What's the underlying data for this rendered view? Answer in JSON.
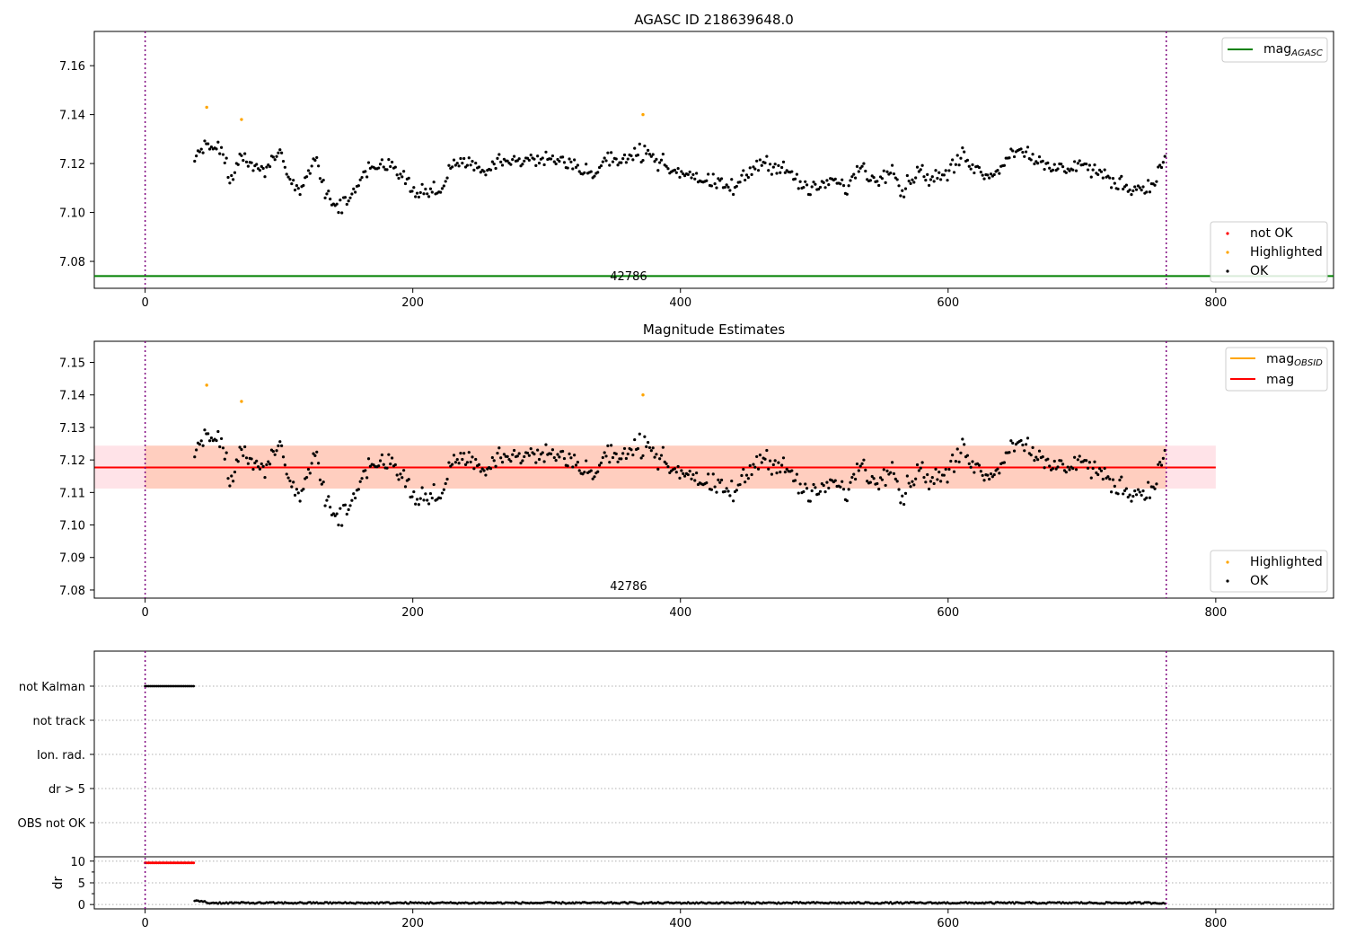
{
  "chart_data": [
    {
      "type": "scatter",
      "title": "AGASC ID 218639648.0",
      "xlabel": "",
      "ylabel": "",
      "xlim": [
        -38,
        888
      ],
      "ylim": [
        7.069,
        7.174
      ],
      "xticks": [
        0,
        200,
        400,
        600,
        800
      ],
      "yticks": [
        7.08,
        7.1,
        7.12,
        7.14,
        7.16
      ],
      "ytick_labels": [
        "7.08",
        "7.10",
        "7.12",
        "7.14",
        "7.16"
      ],
      "xtick_labels": [
        "0",
        "200",
        "400",
        "600",
        "800"
      ],
      "vlines": [
        0,
        763
      ],
      "hline": {
        "name": "mag_AGASC",
        "y": 7.074,
        "color": "#008000"
      },
      "obsid_label": {
        "text": "42786",
        "x": 380
      },
      "legend_upper": [
        {
          "label": "mag",
          "sub": "AGASC",
          "color": "#008000"
        }
      ],
      "legend_lower": [
        {
          "label": "not OK",
          "color": "#ff0000"
        },
        {
          "label": "Highlighted",
          "color": "#ffa500"
        },
        {
          "label": "OK",
          "color": "#000000"
        }
      ],
      "highlighted_points": [
        {
          "x": 46,
          "y": 7.143
        },
        {
          "x": 72,
          "y": 7.138
        },
        {
          "x": 372,
          "y": 7.14
        }
      ],
      "series_profile": {
        "x_start": 37,
        "x_end": 763,
        "x_step": 1.25,
        "anchors_x": [
          37,
          45,
          55,
          65,
          70,
          78,
          90,
          100,
          108,
          115,
          120,
          128,
          135,
          140,
          145,
          150,
          158,
          165,
          175,
          185,
          200,
          210,
          222,
          230,
          240,
          252,
          265,
          280,
          300,
          320,
          335,
          345,
          358,
          368,
          375,
          385,
          395,
          408,
          420,
          440,
          460,
          478,
          490,
          500,
          512,
          525,
          535,
          545,
          558,
          565,
          578,
          585,
          598,
          612,
          622,
          635,
          650,
          660,
          672,
          686,
          700,
          712,
          722,
          738,
          750,
          758,
          763
        ],
        "anchors_y": [
          7.122,
          7.128,
          7.127,
          7.112,
          7.122,
          7.12,
          7.117,
          7.126,
          7.112,
          7.107,
          7.115,
          7.124,
          7.108,
          7.104,
          7.102,
          7.104,
          7.11,
          7.118,
          7.119,
          7.12,
          7.109,
          7.108,
          7.11,
          7.12,
          7.121,
          7.117,
          7.122,
          7.121,
          7.122,
          7.12,
          7.115,
          7.122,
          7.121,
          7.124,
          7.126,
          7.12,
          7.117,
          7.116,
          7.112,
          7.11,
          7.121,
          7.118,
          7.111,
          7.109,
          7.113,
          7.11,
          7.12,
          7.112,
          7.12,
          7.108,
          7.118,
          7.114,
          7.115,
          7.124,
          7.117,
          7.116,
          7.126,
          7.125,
          7.118,
          7.118,
          7.12,
          7.116,
          7.113,
          7.11,
          7.11,
          7.117,
          7.124
        ]
      },
      "points_note": "OK points: ~580 individual magnitude estimates (mag 7.099–7.136) generated from series_profile"
    },
    {
      "type": "scatter",
      "title": "Magnitude Estimates",
      "xlim": [
        -38,
        888
      ],
      "ylim": [
        7.0775,
        7.1565
      ],
      "xticks": [
        0,
        200,
        400,
        600,
        800
      ],
      "yticks": [
        7.08,
        7.09,
        7.1,
        7.11,
        7.12,
        7.13,
        7.14,
        7.15
      ],
      "ytick_labels": [
        "7.08",
        "7.09",
        "7.10",
        "7.11",
        "7.12",
        "7.13",
        "7.14",
        "7.15"
      ],
      "xtick_labels": [
        "0",
        "200",
        "400",
        "600",
        "800"
      ],
      "vlines": [
        0,
        763
      ],
      "mag": {
        "value": 7.1177,
        "low": 7.1112,
        "high": 7.1244,
        "x_range": [
          -38,
          800
        ]
      },
      "mag_obsid": {
        "value": 7.1177,
        "low": 7.1112,
        "high": 7.1244,
        "x_range": [
          0,
          763
        ]
      },
      "obsid_label": {
        "text": "42786",
        "x": 380
      },
      "legend_upper": [
        {
          "label": "mag",
          "sub": "OBSID",
          "color": "#ffa500"
        },
        {
          "label": "mag",
          "sub": "",
          "color": "#ff0000"
        }
      ],
      "legend_lower": [
        {
          "label": "Highlighted",
          "color": "#ffa500"
        },
        {
          "label": "OK",
          "color": "#000000"
        }
      ]
    },
    {
      "type": "scatter",
      "title": "",
      "xlim": [
        -38,
        888
      ],
      "flags": [
        "not Kalman",
        "not track",
        "Ion. rad.",
        "dr > 5",
        "OBS not OK"
      ],
      "flag_ranges": [
        {
          "flag": "not Kalman",
          "x_range": [
            0,
            37
          ]
        }
      ],
      "dr_ylim": [
        -1,
        11
      ],
      "dr_yticks": [
        0,
        5,
        10
      ],
      "dr_ytick_labels": [
        "0",
        "5",
        "10"
      ],
      "dr_ylabel": "dr",
      "dr_high": {
        "x_range": [
          0,
          37
        ],
        "value": 9.6,
        "color": "#ff0000"
      },
      "dr_low": {
        "x_range": [
          37,
          763
        ],
        "value_range": [
          0.0,
          0.7
        ],
        "color": "#000000"
      },
      "xticks": [
        0,
        200,
        400,
        600,
        800
      ],
      "xtick_labels": [
        "0",
        "200",
        "400",
        "600",
        "800"
      ],
      "vlines": [
        0,
        763
      ]
    }
  ]
}
